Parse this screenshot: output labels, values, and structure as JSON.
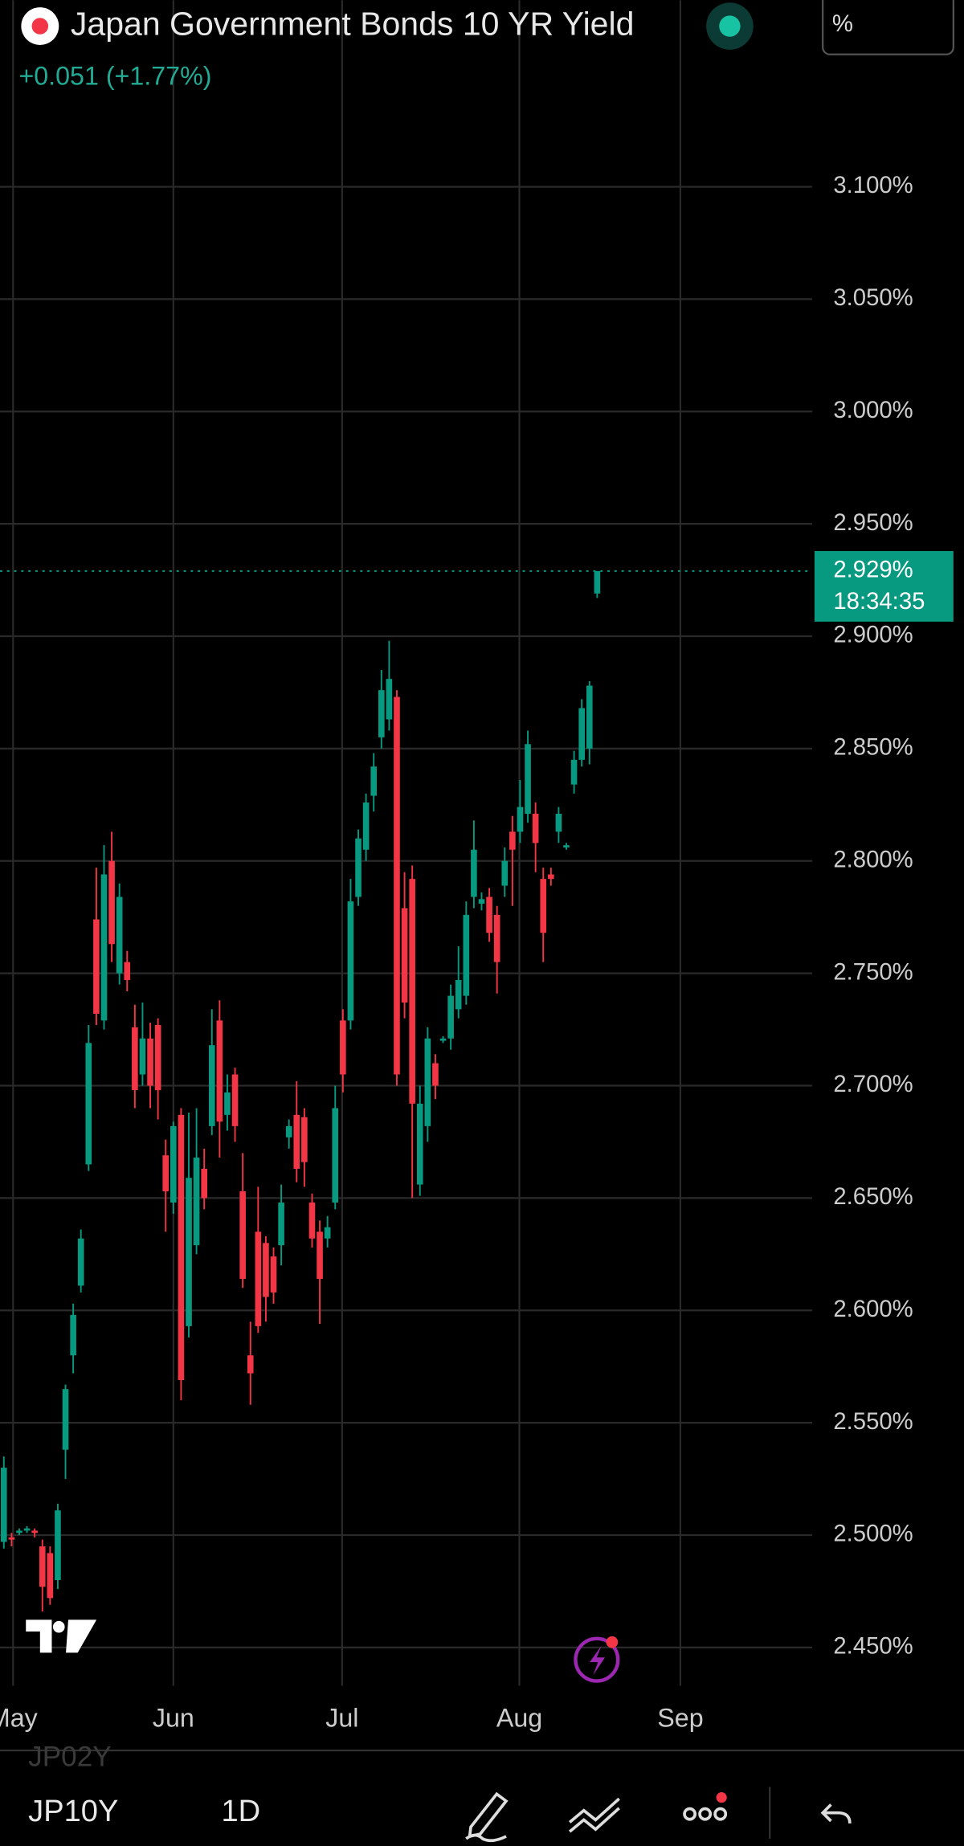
{
  "header": {
    "title": "Japan Government Bonds 10 YR Yield",
    "change": "+0.051 (+1.77%)",
    "unit_button": "%"
  },
  "chart_data": {
    "type": "candlestick",
    "open": [
      2.497,
      2.499,
      2.501,
      2.502,
      2.502,
      2.495,
      2.492,
      2.48,
      2.538,
      2.58,
      2.611,
      2.665,
      2.774,
      2.729,
      2.8,
      2.75,
      2.755,
      2.726,
      2.705,
      2.721,
      2.727,
      2.669,
      2.648,
      2.687,
      2.593,
      2.629,
      2.663,
      2.682,
      2.729,
      2.687,
      2.705,
      2.653,
      2.58,
      2.635,
      2.63,
      2.624,
      2.629,
      2.677,
      2.687,
      2.686,
      2.648,
      2.635,
      2.632,
      2.648,
      2.729,
      2.729,
      2.784,
      2.805,
      2.829,
      2.855,
      2.863,
      2.873,
      2.779,
      2.792,
      2.656,
      2.682,
      2.71,
      2.72,
      2.721,
      2.734,
      2.74,
      2.784,
      2.781,
      2.784,
      2.776,
      2.789,
      2.813,
      2.813,
      2.821,
      2.821,
      2.792,
      2.794,
      2.813,
      2.806,
      2.834,
      2.845,
      2.85,
      2.919
    ],
    "high": [
      2.535,
      2.501,
      2.503,
      2.504,
      2.503,
      2.498,
      2.495,
      2.514,
      2.567,
      2.603,
      2.636,
      2.727,
      2.797,
      2.807,
      2.813,
      2.79,
      2.76,
      2.736,
      2.737,
      2.728,
      2.73,
      2.676,
      2.684,
      2.69,
      2.688,
      2.69,
      2.672,
      2.734,
      2.738,
      2.705,
      2.708,
      2.67,
      2.595,
      2.655,
      2.633,
      2.628,
      2.656,
      2.685,
      2.702,
      2.69,
      2.652,
      2.64,
      2.642,
      2.7,
      2.734,
      2.792,
      2.814,
      2.83,
      2.848,
      2.885,
      2.898,
      2.876,
      2.795,
      2.798,
      2.7,
      2.726,
      2.714,
      2.722,
      2.745,
      2.762,
      2.782,
      2.818,
      2.786,
      2.788,
      2.78,
      2.806,
      2.82,
      2.836,
      2.858,
      2.826,
      2.797,
      2.797,
      2.824,
      2.808,
      2.849,
      2.872,
      2.88,
      2.929
    ],
    "low": [
      2.494,
      2.495,
      2.5,
      2.501,
      2.499,
      2.466,
      2.469,
      2.476,
      2.525,
      2.572,
      2.608,
      2.662,
      2.727,
      2.725,
      2.755,
      2.745,
      2.742,
      2.69,
      2.7,
      2.69,
      2.685,
      2.635,
      2.643,
      2.56,
      2.588,
      2.625,
      2.645,
      2.678,
      2.668,
      2.68,
      2.675,
      2.61,
      2.558,
      2.59,
      2.595,
      2.603,
      2.62,
      2.672,
      2.657,
      2.655,
      2.628,
      2.594,
      2.628,
      2.645,
      2.697,
      2.725,
      2.78,
      2.8,
      2.822,
      2.85,
      2.858,
      2.7,
      2.73,
      2.65,
      2.651,
      2.675,
      2.694,
      2.719,
      2.716,
      2.73,
      2.736,
      2.779,
      2.778,
      2.764,
      2.741,
      2.784,
      2.78,
      2.808,
      2.817,
      2.795,
      2.755,
      2.789,
      2.808,
      2.805,
      2.83,
      2.842,
      2.843,
      2.917
    ],
    "close": [
      2.53,
      2.498,
      2.502,
      2.503,
      2.501,
      2.477,
      2.472,
      2.511,
      2.565,
      2.598,
      2.632,
      2.719,
      2.732,
      2.794,
      2.763,
      2.784,
      2.747,
      2.698,
      2.721,
      2.7,
      2.698,
      2.653,
      2.682,
      2.569,
      2.659,
      2.668,
      2.65,
      2.718,
      2.684,
      2.697,
      2.682,
      2.614,
      2.572,
      2.593,
      2.606,
      2.608,
      2.648,
      2.682,
      2.663,
      2.666,
      2.632,
      2.614,
      2.637,
      2.69,
      2.705,
      2.782,
      2.81,
      2.826,
      2.842,
      2.876,
      2.881,
      2.705,
      2.737,
      2.692,
      2.692,
      2.721,
      2.7,
      2.721,
      2.74,
      2.747,
      2.776,
      2.805,
      2.783,
      2.768,
      2.755,
      2.8,
      2.805,
      2.824,
      2.852,
      2.808,
      2.768,
      2.792,
      2.821,
      2.807,
      2.845,
      2.868,
      2.878,
      2.929
    ],
    "up_color": "#089981",
    "down_color": "#f23645",
    "xlim": [
      -0.5,
      104.9
    ],
    "xticks": [
      {
        "value": 1.2,
        "label": "May"
      },
      {
        "value": 22,
        "label": "Jun"
      },
      {
        "value": 43.9,
        "label": "Jul"
      },
      {
        "value": 66.9,
        "label": "Aug"
      },
      {
        "value": 87.8,
        "label": "Sep"
      }
    ],
    "ylim": [
      2.433,
      3.183
    ],
    "yticks": [
      {
        "value": 2.45,
        "label": "2.450%"
      },
      {
        "value": 2.5,
        "label": "2.500%"
      },
      {
        "value": 2.55,
        "label": "2.550%"
      },
      {
        "value": 2.6,
        "label": "2.600%"
      },
      {
        "value": 2.65,
        "label": "2.650%"
      },
      {
        "value": 2.7,
        "label": "2.700%"
      },
      {
        "value": 2.75,
        "label": "2.750%"
      },
      {
        "value": 2.8,
        "label": "2.800%"
      },
      {
        "value": 2.85,
        "label": "2.850%"
      },
      {
        "value": 2.9,
        "label": "2.900%"
      },
      {
        "value": 2.95,
        "label": "2.950%"
      },
      {
        "value": 3.0,
        "label": "3.000%"
      },
      {
        "value": 3.05,
        "label": "3.050%"
      },
      {
        "value": 3.1,
        "label": "3.100%"
      }
    ],
    "grid": true,
    "last_price": {
      "value": 2.929,
      "label": "2.929%"
    },
    "countdown": "18:34:35"
  },
  "toolbar": {
    "previous_symbol": "JP02Y",
    "symbol": "JP10Y",
    "interval": "1D"
  }
}
